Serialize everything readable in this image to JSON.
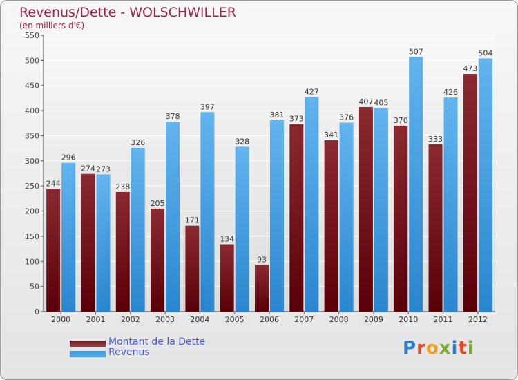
{
  "header": {
    "title": "Revenus/Dette - WOLSCHWILLER",
    "subtitle": "(en milliers d'€)"
  },
  "chart_data": {
    "type": "bar",
    "title": "Revenus/Dette - WOLSCHWILLER",
    "subtitle": "(en milliers d'€)",
    "xlabel": "",
    "ylabel": "",
    "ylim": [
      0,
      550
    ],
    "yticks": [
      0,
      50,
      100,
      150,
      200,
      250,
      300,
      350,
      400,
      450,
      500,
      550
    ],
    "grid": true,
    "legend_position": "bottom-left",
    "categories": [
      "2000",
      "2001",
      "2002",
      "2003",
      "2004",
      "2005",
      "2006",
      "2007",
      "2008",
      "2009",
      "2010",
      "2011",
      "2012"
    ],
    "series": [
      {
        "name": "Montant de la Dette",
        "color": "#7a1a1f",
        "values": [
          244,
          274,
          238,
          205,
          171,
          134,
          93,
          373,
          341,
          407,
          370,
          333,
          473
        ]
      },
      {
        "name": "Revenus",
        "color": "#3d9be0",
        "values": [
          296,
          273,
          326,
          378,
          397,
          328,
          381,
          427,
          376,
          405,
          507,
          426,
          504
        ]
      }
    ]
  },
  "legend": {
    "items": [
      {
        "label": "Montant de la Dette",
        "color": "#7a1a1f"
      },
      {
        "label": "Revenus",
        "color": "#3d9be0"
      }
    ]
  },
  "logo": {
    "letters": [
      {
        "char": "P",
        "color": "#2a7fd0"
      },
      {
        "char": "r",
        "color": "#e0462a"
      },
      {
        "char": "o",
        "color": "#f0a020"
      },
      {
        "char": "x",
        "color": "#7ab030"
      },
      {
        "char": "i",
        "color": "#2a7fd0"
      },
      {
        "char": "t",
        "color": "#e0462a"
      },
      {
        "char": "i",
        "color": "#7ab030"
      }
    ]
  }
}
